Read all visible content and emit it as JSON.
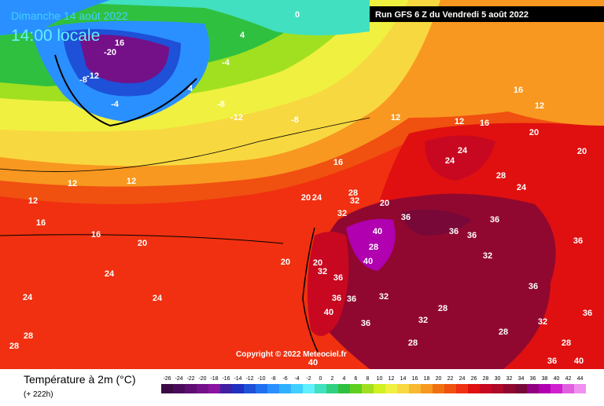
{
  "header": {
    "date": "Dimanche 14 août 2022",
    "time": "14:00 locale",
    "run": "Run GFS 6 Z du Vendredi 5 août 2022"
  },
  "copyright": "Copyright © 2022 Meteociel.fr",
  "legend": {
    "title": "Température à 2m (°C)",
    "lead": "(+ 222h)",
    "ticks": [
      -26,
      -24,
      -22,
      -20,
      -18,
      -16,
      -14,
      -12,
      -10,
      -8,
      -6,
      -4,
      -2,
      0,
      2,
      4,
      6,
      8,
      10,
      12,
      14,
      16,
      18,
      20,
      22,
      24,
      26,
      28,
      30,
      32,
      34,
      36,
      38,
      40,
      42,
      44
    ],
    "colors": [
      "#3b0a45",
      "#4c0b5a",
      "#5e0d70",
      "#741088",
      "#8a13a0",
      "#4020a0",
      "#2030c0",
      "#1e50d8",
      "#2070f0",
      "#2a90ff",
      "#30b0ff",
      "#40d0ff",
      "#60f0ff",
      "#40e0c0",
      "#30d080",
      "#30c040",
      "#60d020",
      "#a0e020",
      "#d0f020",
      "#f0f040",
      "#f8d840",
      "#f8b830",
      "#f89820",
      "#f07010",
      "#f05010",
      "#f03010",
      "#e01010",
      "#c80820",
      "#b00828",
      "#900830",
      "#780838",
      "#900080",
      "#b000b0",
      "#d020d0",
      "#e060e0",
      "#f090f0"
    ]
  },
  "map_labels": [
    -20,
    16,
    -12,
    -8,
    -4,
    4,
    -4,
    0,
    4,
    -8,
    -12,
    -8,
    12,
    12,
    12,
    12,
    16,
    16,
    20,
    20,
    24,
    24,
    24,
    28,
    28,
    16,
    20,
    24,
    28,
    32,
    32,
    20,
    36,
    40,
    40,
    36,
    36,
    40,
    32,
    28,
    32,
    36,
    28,
    36,
    36,
    36,
    32,
    28,
    24,
    20,
    20,
    24,
    24,
    28,
    16,
    12,
    16,
    12,
    36,
    36,
    40,
    36,
    28,
    36,
    32,
    20,
    32,
    36,
    40,
    28
  ]
}
